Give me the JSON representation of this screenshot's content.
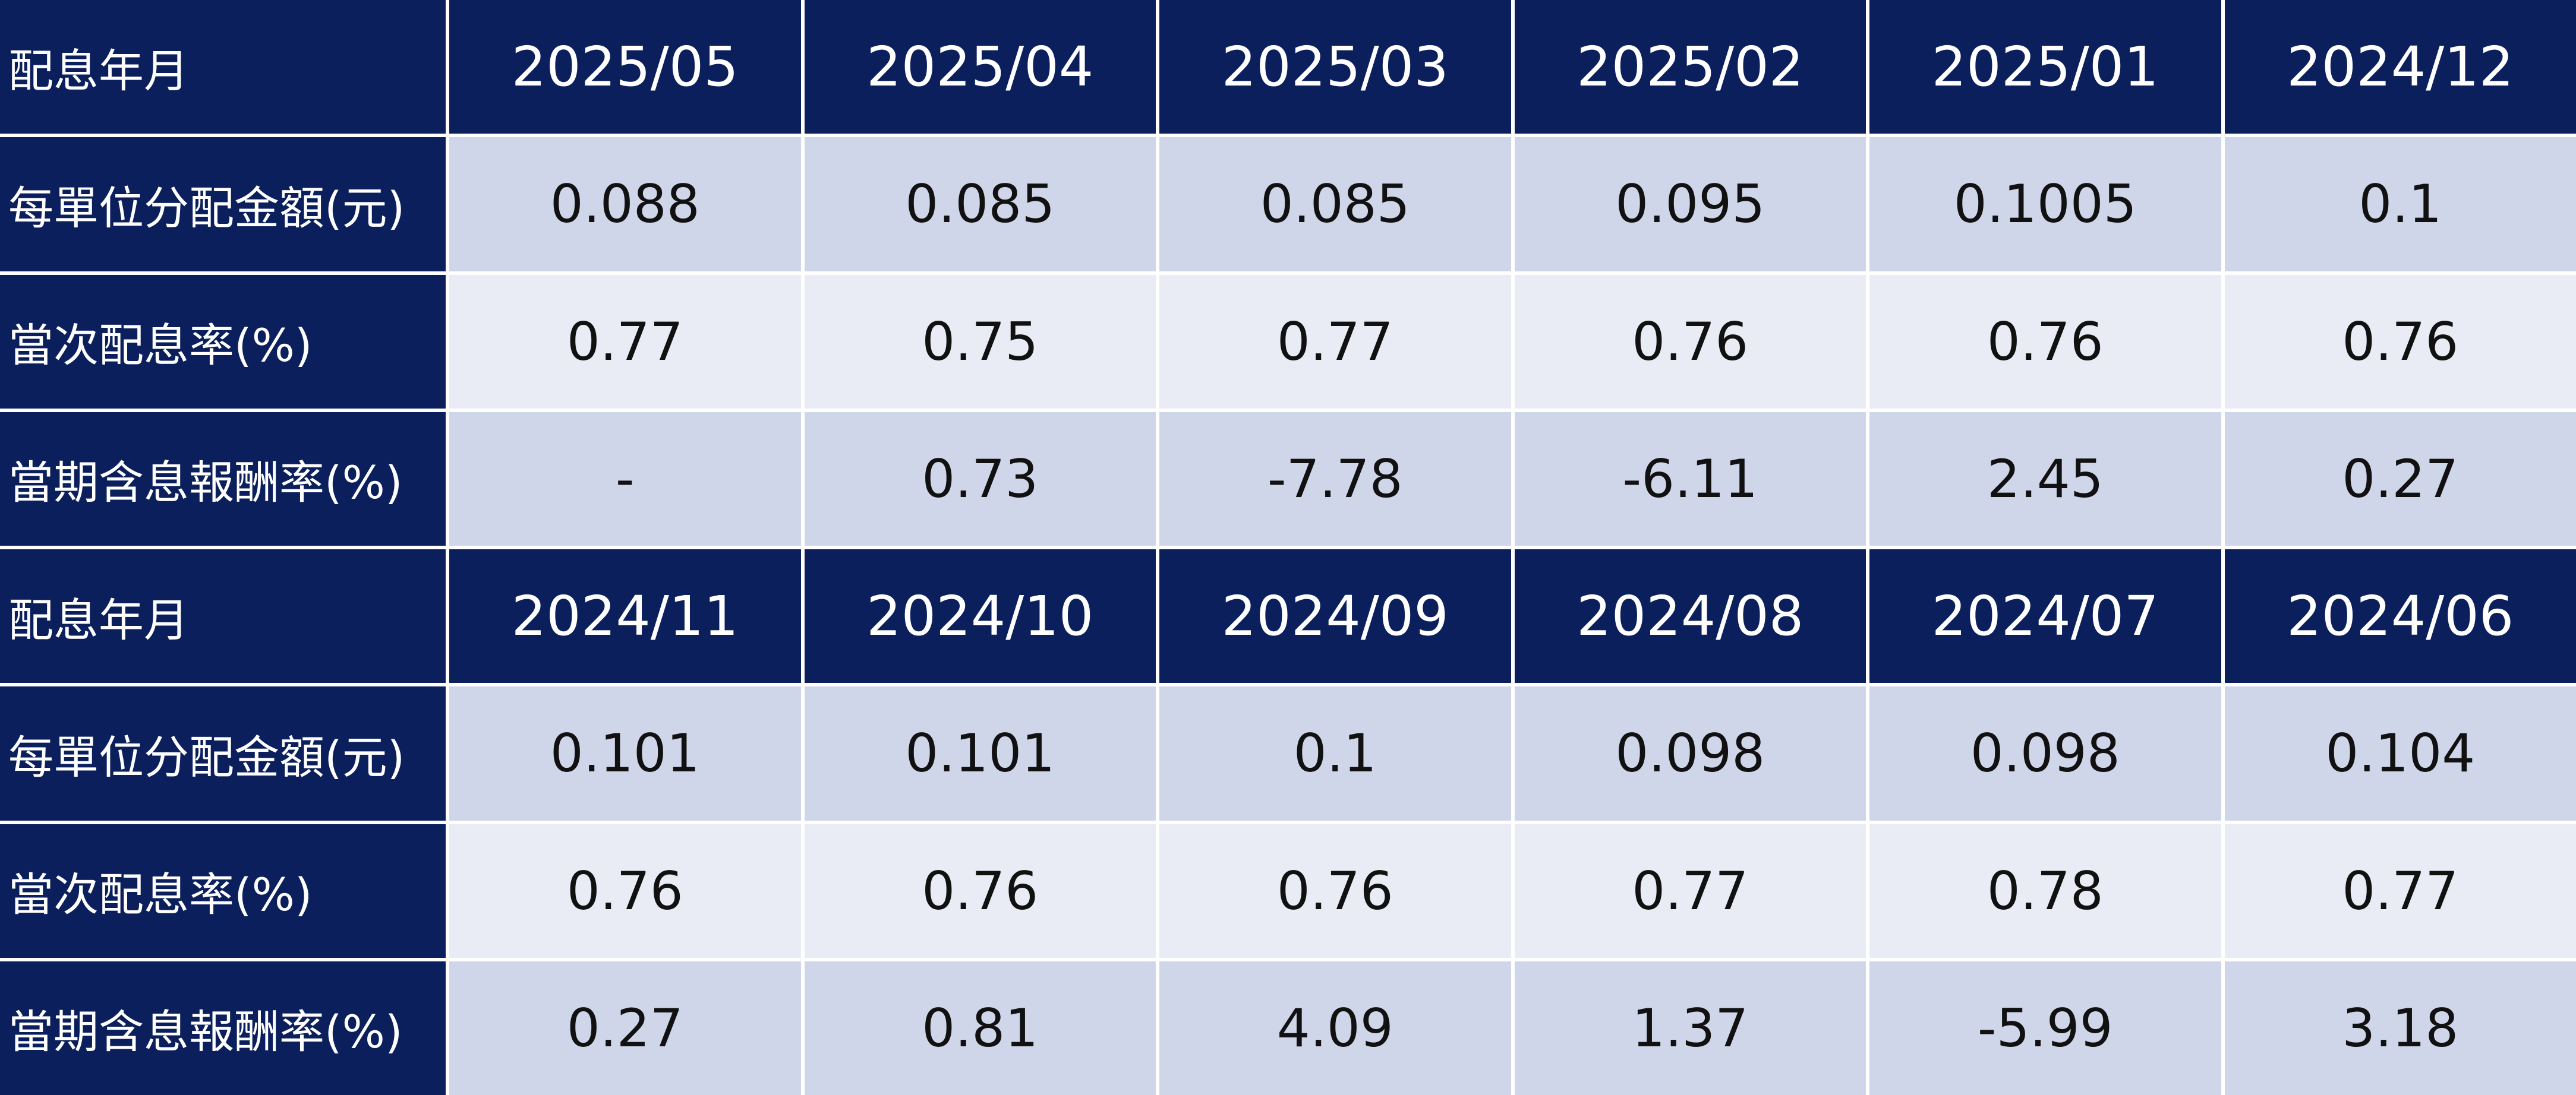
{
  "blocks": [
    {
      "header_label": "配息年月",
      "months": [
        "2025/05",
        "2025/04",
        "2025/03",
        "2025/02",
        "2025/01",
        "2024/12"
      ],
      "rows": [
        {
          "label": "每單位分配金額(元)",
          "values": [
            "0.088",
            "0.085",
            "0.085",
            "0.095",
            "0.1005",
            "0.1"
          ]
        },
        {
          "label": "當次配息率(%)",
          "values": [
            "0.77",
            "0.75",
            "0.77",
            "0.76",
            "0.76",
            "0.76"
          ]
        },
        {
          "label": "當期含息報酬率(%)",
          "values": [
            "-",
            "0.73",
            "-7.78",
            "-6.11",
            "2.45",
            "0.27"
          ]
        }
      ]
    },
    {
      "header_label": "配息年月",
      "months": [
        "2024/11",
        "2024/10",
        "2024/09",
        "2024/08",
        "2024/07",
        "2024/06"
      ],
      "rows": [
        {
          "label": "每單位分配金額(元)",
          "values": [
            "0.101",
            "0.101",
            "0.1",
            "0.098",
            "0.098",
            "0.104"
          ]
        },
        {
          "label": "當次配息率(%)",
          "values": [
            "0.76",
            "0.76",
            "0.76",
            "0.77",
            "0.78",
            "0.77"
          ]
        },
        {
          "label": "當期含息報酬率(%)",
          "values": [
            "0.27",
            "0.81",
            "4.09",
            "1.37",
            "-5.99",
            "3.18"
          ]
        }
      ]
    }
  ],
  "colors": {
    "header_bg": "#0a1f5c",
    "row_dark": "#d0d6ea",
    "row_light": "#e9ecf5"
  }
}
